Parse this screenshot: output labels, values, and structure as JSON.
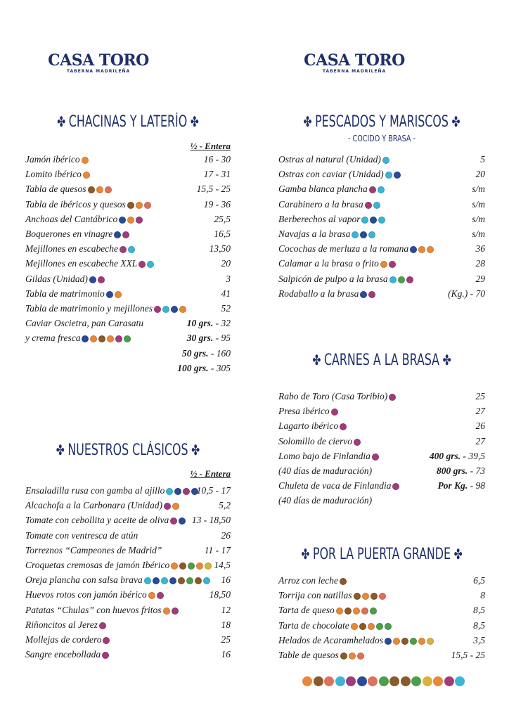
{
  "logos": [
    {
      "name": "CASA TORO",
      "tagline": "TABERNA MADRILEÑA"
    },
    {
      "name": "CASA TORO",
      "tagline": "TABERNA MADRILEÑA"
    }
  ],
  "sections": [
    {
      "title": "CHACINAS Y LATERÍO",
      "header": "½ - Entera",
      "rows": [
        {
          "name": "Jamón ibérico",
          "price": "16 - 30"
        },
        {
          "name": "Lomito ibérico",
          "price": "17 - 31"
        },
        {
          "name": "Tabla de quesos",
          "price": "15,5 - 25"
        },
        {
          "name": "Tabla de ibéricos y quesos",
          "price": "19 - 36"
        },
        {
          "name": "Anchoas del Cantábrico",
          "price": "25,5"
        },
        {
          "name": "Boquerones en vinagre",
          "price": "16,5"
        },
        {
          "name": "Mejillones en escabeche",
          "price": "13,50"
        },
        {
          "name": "Mejillones en escabeche XXL",
          "price": "20"
        },
        {
          "name": "Gildas (Unidad)",
          "price": "3"
        },
        {
          "name": "Tabla de matrimonio",
          "price": "41"
        },
        {
          "name": "Tabla de matrimonio y mejillones",
          "price": "52"
        },
        {
          "name": "Caviar Oscietra, pan Carasatu",
          "qty": "10 grs.",
          "price": "- 32"
        },
        {
          "name": "y crema fresca",
          "qty": "30 grs.",
          "price": "- 95"
        },
        {
          "qty": "50 grs.",
          "price": "- 160"
        },
        {
          "qty": "100 grs.",
          "price": "- 305"
        }
      ]
    },
    {
      "title": "NUESTROS CLÁSICOS",
      "header": "½ - Entera",
      "rows": [
        {
          "name": "Ensaladilla rusa con gamba al ajillo",
          "price": "10,5 - 17"
        },
        {
          "name": "Alcachofa a la Carbonara (Unidad)",
          "price": "5,2"
        },
        {
          "name": "Tomate con cebollita y aceite de oliva",
          "price": "13 - 18,50"
        },
        {
          "name": "Tomate con ventresca de atún",
          "price": "26"
        },
        {
          "name": "Torreznos “Campeones de Madrid”",
          "price": "11 - 17"
        },
        {
          "name": "Croquetas cremosas de jamón Ibérico",
          "price": "14,5"
        },
        {
          "name": "Oreja plancha con salsa brava",
          "price": "16"
        },
        {
          "name": "Huevos rotos con jamón ibérico",
          "price": "18,50"
        },
        {
          "name": "Patatas “Chulas” con huevos fritos",
          "price": "12"
        },
        {
          "name": "Riñoncitos al Jerez",
          "price": "18"
        },
        {
          "name": "Mollejas de cordero",
          "price": "25"
        },
        {
          "name": "Sangre encebollada",
          "price": "16"
        }
      ]
    },
    {
      "title": "PESCADOS Y MARISCOS",
      "subtitle": "- COCIDO Y BRASA -",
      "rows": [
        {
          "name": "Ostras al natural (Unidad)",
          "price": "5"
        },
        {
          "name": "Ostras con caviar (Unidad)",
          "price": "20"
        },
        {
          "name": "Gamba blanca plancha",
          "price": "s/m"
        },
        {
          "name": "Carabinero a la brasa",
          "price": "s/m"
        },
        {
          "name": "Berberechos al vapor",
          "price": "s/m"
        },
        {
          "name": "Navajas a la brasa",
          "price": "s/m"
        },
        {
          "name": "Cocochas de merluza a la romana",
          "price": "36"
        },
        {
          "name": "Calamar a la brasa o frito",
          "price": "28"
        },
        {
          "name": "Salpicón de pulpo a la brasa",
          "price": "29"
        },
        {
          "name": "Rodaballo a la brasa",
          "price": "(Kg.) - 70"
        }
      ]
    },
    {
      "title": "CARNES A LA BRASA",
      "rows": [
        {
          "name": "Rabo de Toro (Casa Toribio)",
          "price": "25"
        },
        {
          "name": "Presa ibérico",
          "price": "27"
        },
        {
          "name": "Lagarto ibérico",
          "price": "26"
        },
        {
          "name": "Solomillo de ciervo",
          "price": "27"
        },
        {
          "name": "Lomo bajo de Finlandia",
          "qty": "400 grs.",
          "price": "- 39,5"
        },
        {
          "name": "(40 días de maduración)",
          "qty": "800 grs.",
          "price": "- 73"
        },
        {
          "name": "Chuleta de vaca de Finlandia",
          "qty": "Por Kg.",
          "price": "- 98"
        },
        {
          "name": "(40 días de maduración)"
        }
      ]
    },
    {
      "title": "POR LA PUERTA GRANDE",
      "rows": [
        {
          "name": "Arroz con leche",
          "price": "6,5"
        },
        {
          "name": "Torrija con natillas",
          "price": "8"
        },
        {
          "name": "Tarta de queso",
          "price": "8,5"
        },
        {
          "name": "Tarta de chocolate",
          "price": "8,5"
        },
        {
          "name": "Helados de Acaramhelados",
          "price": "3,5"
        },
        {
          "name": "Table de quesos",
          "price": "15,5 - 25"
        }
      ]
    }
  ]
}
